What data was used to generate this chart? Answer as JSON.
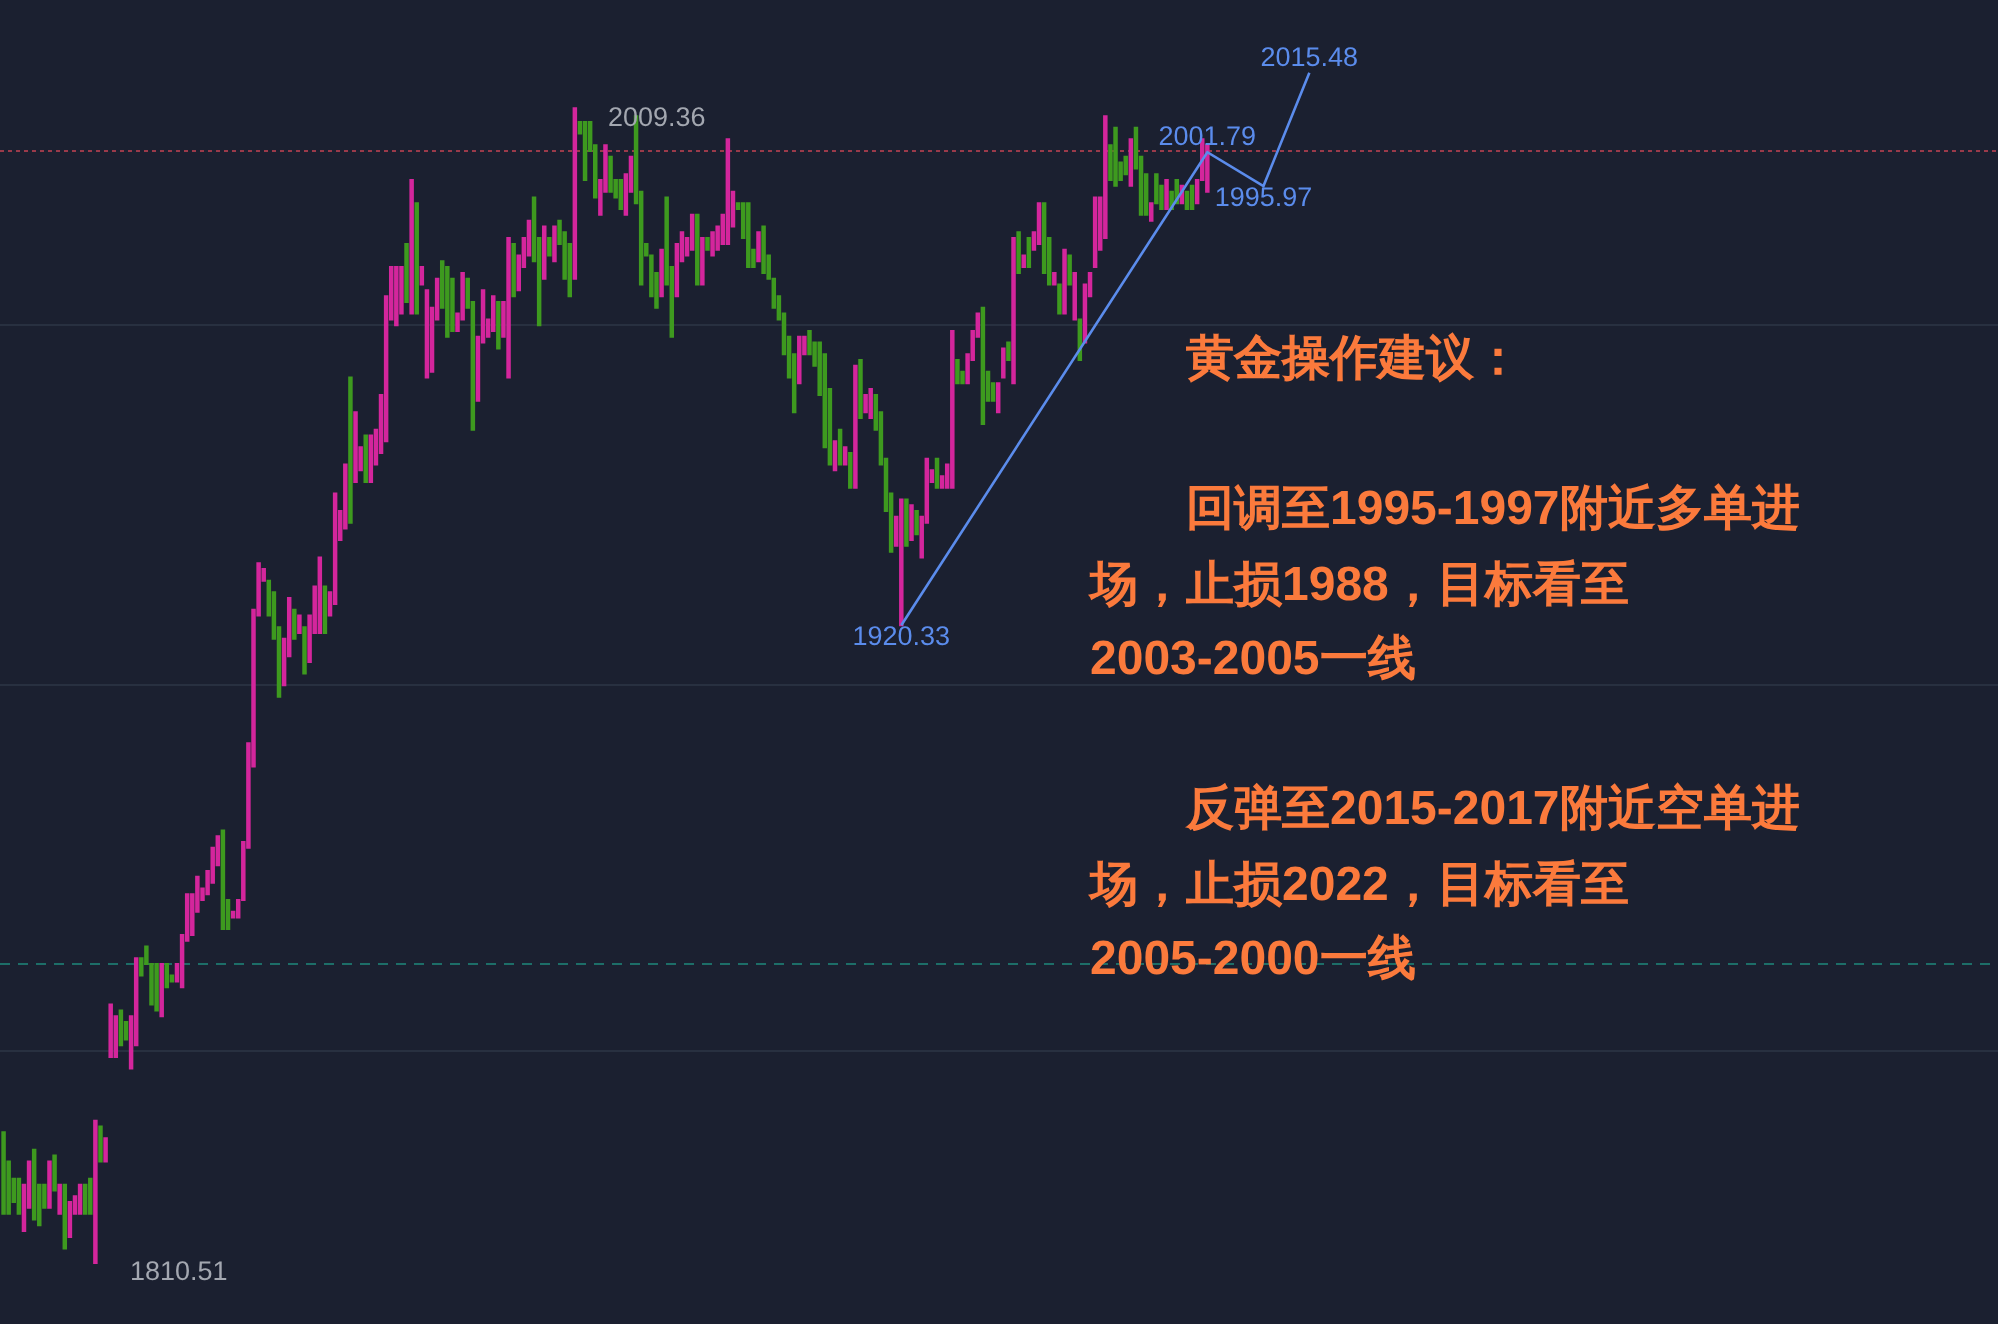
{
  "chart_data": {
    "type": "candlestick",
    "categories": [
      null,
      null,
      null,
      null,
      null,
      null,
      null,
      null,
      null,
      null,
      null,
      null,
      null,
      null,
      null,
      null,
      null,
      null,
      null,
      null,
      null,
      null,
      null,
      null,
      null,
      null,
      null,
      null,
      null,
      null,
      null,
      null,
      null,
      null,
      null,
      null,
      null,
      null,
      null,
      null,
      null,
      null,
      null,
      null,
      null,
      null,
      null,
      null,
      null,
      null,
      null,
      null,
      null,
      null,
      null,
      null,
      null,
      null,
      null,
      null,
      null,
      null,
      null,
      null,
      null,
      null,
      null,
      null,
      null,
      null,
      null,
      null,
      null,
      null,
      null,
      null,
      null,
      null,
      null,
      null,
      null,
      null,
      null,
      null,
      null,
      null,
      null,
      null,
      null,
      null,
      null,
      null,
      null,
      null,
      null,
      null,
      null,
      null,
      null,
      null,
      null,
      null,
      null,
      null,
      null,
      null,
      null,
      null,
      null,
      null,
      null,
      null,
      null,
      null,
      null,
      null,
      null,
      null,
      null,
      null,
      null,
      null,
      null,
      null,
      null,
      null,
      null,
      null,
      null,
      null,
      null,
      null,
      null,
      null,
      null,
      null,
      null,
      null,
      null,
      null,
      null,
      null,
      null,
      null,
      null,
      null,
      null,
      null,
      null,
      null,
      null,
      null,
      null,
      null,
      null,
      null,
      null,
      null,
      null,
      null,
      null,
      null,
      null,
      null,
      null,
      null,
      null,
      null,
      null,
      null,
      null,
      null,
      null,
      null,
      null,
      null,
      null,
      null,
      null,
      null,
      null,
      null,
      null,
      null,
      null,
      null,
      null,
      null,
      null,
      null,
      null,
      null,
      null,
      null,
      null,
      null,
      null,
      null,
      null,
      null,
      null,
      null,
      null,
      null,
      null,
      null,
      null,
      null,
      null,
      null,
      null,
      null,
      null,
      null,
      null,
      null,
      null,
      null,
      null,
      null,
      null,
      null,
      null,
      null,
      null,
      null,
      null,
      null,
      null,
      null,
      null,
      null,
      null,
      null,
      null,
      null,
      null,
      null,
      null,
      null,
      null,
      null,
      null,
      null,
      null,
      null,
      null,
      null,
      null,
      null,
      null,
      null,
      null,
      null,
      null,
      null,
      null
    ],
    "ohlc": [
      [
        1833,
        1833,
        1819,
        1819
      ],
      [
        1828,
        1828,
        1819,
        1819
      ],
      [
        1825,
        1825,
        1821,
        1821
      ],
      [
        1825,
        1825,
        1819,
        1819
      ],
      [
        1816,
        1824,
        1816,
        1824
      ],
      [
        1820,
        1828,
        1820,
        1828
      ],
      [
        1830,
        1830,
        1818,
        1818
      ],
      [
        1824,
        1824,
        1817,
        1817
      ],
      [
        1824,
        1824,
        1820,
        1820
      ],
      [
        1820,
        1828,
        1820,
        1828
      ],
      [
        1829,
        1829,
        1823,
        1823
      ],
      [
        1819,
        1824,
        1819,
        1824
      ],
      [
        1824,
        1824,
        1813,
        1813
      ],
      [
        1815,
        1821,
        1815,
        1821
      ],
      [
        1819,
        1822,
        1819,
        1822
      ],
      [
        1819,
        1824,
        1819,
        1824
      ],
      [
        1824,
        1824,
        1819,
        1819
      ],
      [
        1825,
        1825,
        1819,
        1819
      ],
      [
        1810.51,
        1835,
        1810.51,
        1835
      ],
      [
        1834,
        1834,
        1828,
        1828
      ],
      [
        1828,
        1832,
        1828,
        1832
      ],
      [
        1846,
        1855,
        1846,
        1855
      ],
      [
        1846,
        1853,
        1846,
        1853
      ],
      [
        1854,
        1854,
        1848,
        1848
      ],
      [
        1852,
        1852,
        1849,
        1849
      ],
      [
        1844,
        1853,
        1844,
        1853
      ],
      [
        1848,
        1863,
        1848,
        1863
      ],
      [
        1863,
        1863,
        1860,
        1860
      ],
      [
        1865,
        1865,
        1862,
        1862
      ],
      [
        1862,
        1862,
        1855,
        1855
      ],
      [
        1862,
        1862,
        1854,
        1854
      ],
      [
        1853,
        1862,
        1853,
        1862
      ],
      [
        1862,
        1862,
        1858,
        1858
      ],
      [
        1860,
        1860,
        1859,
        1859
      ],
      [
        1859,
        1862,
        1859,
        1862
      ],
      [
        1858,
        1867,
        1858,
        1867
      ],
      [
        1866,
        1874,
        1866,
        1874
      ],
      [
        1867,
        1874,
        1867,
        1874
      ],
      [
        1871,
        1877,
        1871,
        1877
      ],
      [
        1873,
        1875,
        1873,
        1875
      ],
      [
        1874,
        1878,
        1874,
        1878
      ],
      [
        1876,
        1882,
        1876,
        1882
      ],
      [
        1879,
        1884,
        1879,
        1884
      ],
      [
        1885,
        1885,
        1868,
        1868
      ],
      [
        1873,
        1873,
        1868,
        1868
      ],
      [
        1870,
        1871,
        1870,
        1871
      ],
      [
        1870,
        1873,
        1870,
        1873
      ],
      [
        1873,
        1883,
        1873,
        1883
      ],
      [
        1882,
        1900,
        1882,
        1900
      ],
      [
        1896,
        1923,
        1896,
        1923
      ],
      [
        1922,
        1931,
        1922,
        1931
      ],
      [
        1928,
        1930,
        1928,
        1930
      ],
      [
        1928,
        1928,
        1922,
        1922
      ],
      [
        1926,
        1926,
        1918,
        1918
      ],
      [
        1920,
        1920,
        1908,
        1908
      ],
      [
        1910,
        1918,
        1910,
        1918
      ],
      [
        1915,
        1925,
        1915,
        1925
      ],
      [
        1923,
        1923,
        1918,
        1918
      ],
      [
        1919,
        1922,
        1919,
        1922
      ],
      [
        1920,
        1920,
        1912,
        1912
      ],
      [
        1914,
        1922,
        1914,
        1922
      ],
      [
        1919,
        1927,
        1919,
        1927
      ],
      [
        1919,
        1932,
        1919,
        1932
      ],
      [
        1927,
        1927,
        1919,
        1919
      ],
      [
        1922,
        1926,
        1922,
        1926
      ],
      [
        1924,
        1943,
        1924,
        1943
      ],
      [
        1935,
        1940,
        1935,
        1940
      ],
      [
        1937,
        1948,
        1937,
        1948
      ],
      [
        1963,
        1963,
        1938,
        1938
      ],
      [
        1945,
        1957,
        1945,
        1957
      ],
      [
        1947,
        1951,
        1947,
        1951
      ],
      [
        1953,
        1953,
        1945,
        1945
      ],
      [
        1945,
        1953,
        1945,
        1953
      ],
      [
        1948,
        1954,
        1948,
        1954
      ],
      [
        1950,
        1960,
        1950,
        1960
      ],
      [
        1952,
        1977,
        1952,
        1977
      ],
      [
        1973,
        1982,
        1973,
        1982
      ],
      [
        1972,
        1982,
        1972,
        1982
      ],
      [
        1974,
        1982,
        1974,
        1982
      ],
      [
        1986,
        1986,
        1976,
        1976
      ],
      [
        1974,
        1997,
        1974,
        1997
      ],
      [
        1993,
        1993,
        1974,
        1974
      ],
      [
        1979,
        1982,
        1979,
        1982
      ],
      [
        1963,
        1978,
        1963,
        1978
      ],
      [
        1964,
        1975,
        1964,
        1975
      ],
      [
        1973,
        1980,
        1973,
        1980
      ],
      [
        1983,
        1983,
        1975,
        1975
      ],
      [
        1982,
        1982,
        1970,
        1970
      ],
      [
        1980,
        1980,
        1971,
        1971
      ],
      [
        1971,
        1974,
        1971,
        1974
      ],
      [
        1973,
        1981,
        1973,
        1981
      ],
      [
        1980,
        1980,
        1975,
        1975
      ],
      [
        1976,
        1976,
        1954,
        1954
      ],
      [
        1959,
        1970,
        1959,
        1970
      ],
      [
        1969,
        1978,
        1969,
        1978
      ],
      [
        1970,
        1973,
        1970,
        1973
      ],
      [
        1971,
        1977,
        1971,
        1977
      ],
      [
        1976,
        1976,
        1968,
        1968
      ],
      [
        1970,
        1976,
        1970,
        1976
      ],
      [
        1963,
        1987,
        1963,
        1987
      ],
      [
        1986,
        1986,
        1977,
        1977
      ],
      [
        1978,
        1984,
        1978,
        1984
      ],
      [
        1982,
        1987,
        1982,
        1987
      ],
      [
        1984,
        1990,
        1984,
        1990
      ],
      [
        1994,
        1994,
        1983,
        1983
      ],
      [
        1987,
        1987,
        1972,
        1972
      ],
      [
        1980,
        1989,
        1980,
        1989
      ],
      [
        1987,
        1987,
        1984,
        1984
      ],
      [
        1983,
        1989,
        1983,
        1989
      ],
      [
        1990,
        1990,
        1986,
        1986
      ],
      [
        1988,
        1988,
        1980,
        1980
      ],
      [
        1986,
        1986,
        1977,
        1977
      ],
      [
        1980,
        2009.36,
        1980,
        2009.36
      ],
      [
        2007,
        2007,
        2005,
        2005
      ],
      [
        2007,
        2007,
        1997,
        1997
      ],
      [
        2007,
        2007,
        2002,
        2002
      ],
      [
        2003,
        2003,
        1994,
        1994
      ],
      [
        1991,
        1997,
        1991,
        1997
      ],
      [
        1995,
        2003,
        1995,
        2003
      ],
      [
        2001,
        2001,
        1995,
        1995
      ],
      [
        1997,
        1997,
        1994,
        1994
      ],
      [
        1997,
        1997,
        1992,
        1992
      ],
      [
        1991,
        1998,
        1991,
        1998
      ],
      [
        1995,
        2001,
        1995,
        2001
      ],
      [
        2008,
        2008,
        1993,
        1993
      ],
      [
        1995,
        1995,
        1979,
        1979
      ],
      [
        1986,
        1986,
        1984,
        1984
      ],
      [
        1984,
        1984,
        1977,
        1977
      ],
      [
        1981,
        1981,
        1975,
        1975
      ],
      [
        1977,
        1985,
        1977,
        1985
      ],
      [
        1994,
        1994,
        1979,
        1979
      ],
      [
        1982,
        1982,
        1970,
        1970
      ],
      [
        1977,
        1986,
        1977,
        1986
      ],
      [
        1983,
        1988,
        1983,
        1988
      ],
      [
        1984,
        1987,
        1984,
        1987
      ],
      [
        1985,
        1991,
        1985,
        1991
      ],
      [
        1991,
        1991,
        1979,
        1979
      ],
      [
        1979,
        1987,
        1979,
        1987
      ],
      [
        1987,
        1987,
        1985,
        1985
      ],
      [
        1984,
        1988,
        1984,
        1988
      ],
      [
        1985,
        1989,
        1985,
        1989
      ],
      [
        1986,
        1991,
        1986,
        1991
      ],
      [
        1986,
        2004,
        1986,
        2004
      ],
      [
        1989,
        1995,
        1989,
        1995
      ],
      [
        1993,
        1993,
        1992,
        1992
      ],
      [
        1993,
        1993,
        1987,
        1987
      ],
      [
        1993,
        1993,
        1982,
        1982
      ],
      [
        1985,
        1985,
        1982,
        1982
      ],
      [
        1983,
        1988,
        1983,
        1988
      ],
      [
        1989,
        1989,
        1981,
        1981
      ],
      [
        1984,
        1984,
        1980,
        1980
      ],
      [
        1980,
        1980,
        1975,
        1975
      ],
      [
        1977,
        1977,
        1973,
        1973
      ],
      [
        1974,
        1974,
        1967,
        1967
      ],
      [
        1970,
        1970,
        1963,
        1963
      ],
      [
        1967,
        1967,
        1957,
        1957
      ],
      [
        1962,
        1970,
        1962,
        1970
      ],
      [
        1967,
        1970,
        1967,
        1970
      ],
      [
        1971,
        1971,
        1967,
        1967
      ],
      [
        1969,
        1969,
        1965,
        1965
      ],
      [
        1969,
        1969,
        1960,
        1960
      ],
      [
        1967,
        1967,
        1951,
        1951
      ],
      [
        1961,
        1961,
        1948,
        1948
      ],
      [
        1947,
        1952,
        1947,
        1952
      ],
      [
        1954,
        1954,
        1948,
        1948
      ],
      [
        1948,
        1951,
        1948,
        1951
      ],
      [
        1950,
        1950,
        1944,
        1944
      ],
      [
        1944,
        1965,
        1944,
        1965
      ],
      [
        1966,
        1966,
        1956,
        1956
      ],
      [
        1957,
        1960,
        1957,
        1960
      ],
      [
        1956,
        1961,
        1956,
        1961
      ],
      [
        1960,
        1960,
        1954,
        1954
      ],
      [
        1957,
        1957,
        1948,
        1948
      ],
      [
        1949,
        1949,
        1940,
        1940
      ],
      [
        1943,
        1943,
        1933,
        1933
      ],
      [
        1934,
        1939,
        1934,
        1939
      ],
      [
        1920.33,
        1942,
        1920.33,
        1942
      ],
      [
        1942,
        1942,
        1934,
        1934
      ],
      [
        1935,
        1941,
        1935,
        1941
      ],
      [
        1940,
        1940,
        1936,
        1936
      ],
      [
        1932,
        1939,
        1932,
        1939
      ],
      [
        1938,
        1949,
        1938,
        1949
      ],
      [
        1945,
        1947,
        1945,
        1947
      ],
      [
        1949,
        1949,
        1944,
        1944
      ],
      [
        1944,
        1946,
        1944,
        1946
      ],
      [
        1944,
        1948,
        1944,
        1948
      ],
      [
        1944,
        1971,
        1944,
        1971
      ],
      [
        1966,
        1966,
        1962,
        1962
      ],
      [
        1964,
        1964,
        1962,
        1962
      ],
      [
        1962,
        1967,
        1962,
        1967
      ],
      [
        1966,
        1971,
        1966,
        1971
      ],
      [
        1970,
        1974,
        1970,
        1974
      ],
      [
        1975,
        1975,
        1955,
        1955
      ],
      [
        1964,
        1964,
        1959,
        1959
      ],
      [
        1962,
        1962,
        1959,
        1959
      ],
      [
        1957,
        1962,
        1957,
        1962
      ],
      [
        1963,
        1968,
        1963,
        1968
      ],
      [
        1969,
        1969,
        1966,
        1966
      ],
      [
        1962,
        1987,
        1962,
        1987
      ],
      [
        1988,
        1988,
        1981,
        1981
      ],
      [
        1982,
        1984,
        1982,
        1984
      ],
      [
        1987,
        1987,
        1982,
        1982
      ],
      [
        1985,
        1988,
        1985,
        1988
      ],
      [
        1986,
        1993,
        1986,
        1993
      ],
      [
        1993,
        1993,
        1981,
        1981
      ],
      [
        1987,
        1987,
        1979,
        1979
      ],
      [
        1979,
        1981,
        1979,
        1981
      ],
      [
        1979,
        1979,
        1974,
        1974
      ],
      [
        1974,
        1985,
        1974,
        1985
      ],
      [
        1984,
        1984,
        1979,
        1979
      ],
      [
        1973,
        1981,
        1973,
        1981
      ],
      [
        1973,
        1973,
        1966,
        1966
      ],
      [
        1969,
        1979,
        1969,
        1979
      ],
      [
        1977,
        1981,
        1977,
        1981
      ],
      [
        1982,
        1994,
        1982,
        1994
      ],
      [
        1985,
        1994,
        1985,
        1994
      ],
      [
        1987,
        2008,
        1987,
        2008
      ],
      [
        2003,
        2003,
        1997,
        1997
      ],
      [
        2006,
        2006,
        1996,
        1996
      ],
      [
        2000,
        2000,
        1997,
        1997
      ],
      [
        2001,
        2001,
        1998,
        1998
      ],
      [
        1996,
        2004,
        1996,
        2004
      ],
      [
        2006,
        2006,
        1999,
        1999
      ],
      [
        2001,
        2001,
        1991,
        1991
      ],
      [
        1998,
        1998,
        1991,
        1991
      ],
      [
        1993,
        1993,
        1990,
        1990
      ],
      [
        1993,
        1998,
        1993,
        1998
      ],
      [
        1996,
        1996,
        1992,
        1992
      ],
      [
        1997,
        1997,
        1992,
        1992
      ],
      [
        1992,
        1995,
        1992,
        1995
      ],
      [
        1997,
        1997,
        1993,
        1993
      ],
      [
        1993,
        1996,
        1993,
        1996
      ],
      [
        1995,
        1995,
        1992,
        1992
      ],
      [
        1996,
        1996,
        1992,
        1992
      ],
      [
        1993,
        1997,
        1993,
        1997
      ],
      [
        1997,
        2004,
        1997,
        2004
      ],
      [
        1995,
        2003,
        1995,
        2003
      ],
      null,
      null,
      null,
      null,
      null,
      null,
      null,
      null,
      null,
      null,
      null,
      null,
      null,
      null,
      null,
      null,
      null,
      null,
      null,
      null
    ],
    "colors": [
      "#3e9a1f",
      "#3e9a1f",
      "#3e9a1f",
      "#3e9a1f",
      "#d4269c",
      "#d4269c",
      "#3e9a1f",
      "#3e9a1f",
      "#3e9a1f",
      "#d4269c",
      "#3e9a1f",
      "#d4269c",
      "#3e9a1f",
      "#d4269c",
      "#d4269c",
      "#d4269c",
      "#3e9a1f",
      "#3e9a1f",
      "#d4269c",
      "#3e9a1f",
      "#d4269c",
      "#d4269c",
      "#d4269c",
      "#3e9a1f",
      "#3e9a1f",
      "#d4269c",
      "#d4269c",
      "#3e9a1f",
      "#3e9a1f",
      "#3e9a1f",
      "#3e9a1f",
      "#d4269c",
      "#3e9a1f",
      "#3e9a1f",
      "#d4269c",
      "#d4269c",
      "#d4269c",
      "#d4269c",
      "#d4269c",
      "#d4269c",
      "#d4269c",
      "#d4269c",
      "#d4269c",
      "#3e9a1f",
      "#3e9a1f",
      "#d4269c",
      "#d4269c",
      "#d4269c",
      "#d4269c",
      "#d4269c",
      "#d4269c",
      "#d4269c",
      "#3e9a1f",
      "#3e9a1f",
      "#3e9a1f",
      "#d4269c",
      "#d4269c",
      "#3e9a1f",
      "#d4269c",
      "#3e9a1f",
      "#d4269c",
      "#d4269c",
      "#d4269c",
      "#3e9a1f",
      "#d4269c",
      "#d4269c",
      "#d4269c",
      "#d4269c",
      "#3e9a1f",
      "#d4269c",
      "#d4269c",
      "#3e9a1f",
      "#d4269c",
      "#d4269c",
      "#d4269c",
      "#d4269c",
      "#d4269c",
      "#d4269c",
      "#d4269c",
      "#3e9a1f",
      "#d4269c",
      "#3e9a1f",
      "#d4269c",
      "#d4269c",
      "#d4269c",
      "#d4269c",
      "#3e9a1f",
      "#3e9a1f",
      "#3e9a1f",
      "#d4269c",
      "#d4269c",
      "#3e9a1f",
      "#3e9a1f",
      "#d4269c",
      "#d4269c",
      "#d4269c",
      "#d4269c",
      "#3e9a1f",
      "#d4269c",
      "#d4269c",
      "#3e9a1f",
      "#d4269c",
      "#d4269c",
      "#d4269c",
      "#3e9a1f",
      "#3e9a1f",
      "#d4269c",
      "#3e9a1f",
      "#d4269c",
      "#3e9a1f",
      "#3e9a1f",
      "#3e9a1f",
      "#d4269c",
      "#3e9a1f",
      "#3e9a1f",
      "#3e9a1f",
      "#3e9a1f",
      "#d4269c",
      "#d4269c",
      "#3e9a1f",
      "#3e9a1f",
      "#3e9a1f",
      "#d4269c",
      "#d4269c",
      "#3e9a1f",
      "#3e9a1f",
      "#3e9a1f",
      "#3e9a1f",
      "#3e9a1f",
      "#d4269c",
      "#3e9a1f",
      "#3e9a1f",
      "#d4269c",
      "#d4269c",
      "#d4269c",
      "#d4269c",
      "#3e9a1f",
      "#d4269c",
      "#3e9a1f",
      "#d4269c",
      "#d4269c",
      "#d4269c",
      "#d4269c",
      "#d4269c",
      "#3e9a1f",
      "#3e9a1f",
      "#3e9a1f",
      "#3e9a1f",
      "#d4269c",
      "#3e9a1f",
      "#3e9a1f",
      "#3e9a1f",
      "#3e9a1f",
      "#3e9a1f",
      "#3e9a1f",
      "#3e9a1f",
      "#d4269c",
      "#d4269c",
      "#3e9a1f",
      "#3e9a1f",
      "#3e9a1f",
      "#3e9a1f",
      "#3e9a1f",
      "#d4269c",
      "#3e9a1f",
      "#d4269c",
      "#3e9a1f",
      "#d4269c",
      "#3e9a1f",
      "#d4269c",
      "#d4269c",
      "#3e9a1f",
      "#3e9a1f",
      "#3e9a1f",
      "#3e9a1f",
      "#d4269c",
      "#d4269c",
      "#3e9a1f",
      "#d4269c",
      "#3e9a1f",
      "#d4269c",
      "#d4269c",
      "#d4269c",
      "#3e9a1f",
      "#d4269c",
      "#d4269c",
      "#d4269c",
      "#3e9a1f",
      "#3e9a1f",
      "#d4269c",
      "#d4269c",
      "#d4269c",
      "#3e9a1f",
      "#3e9a1f",
      "#3e9a1f",
      "#d4269c",
      "#d4269c",
      "#3e9a1f",
      "#d4269c",
      "#3e9a1f",
      "#d4269c",
      "#3e9a1f",
      "#d4269c",
      "#d4269c",
      "#3e9a1f",
      "#3e9a1f",
      "#d4269c",
      "#3e9a1f",
      "#d4269c",
      "#3e9a1f",
      "#d4269c",
      "#3e9a1f",
      "#d4269c",
      "#d4269c",
      "#d4269c",
      "#d4269c",
      "#d4269c",
      "#3e9a1f",
      "#3e9a1f",
      "#3e9a1f",
      "#3e9a1f",
      "#d4269c",
      "#3e9a1f",
      "#3e9a1f",
      "#3e9a1f",
      "#d4269c",
      "#3e9a1f",
      "#3e9a1f",
      "#d4269c",
      "#3e9a1f",
      "#3e9a1f",
      "#d4269c",
      "#3e9a1f",
      "#3e9a1f",
      "#d4269c",
      "#d4269c",
      "#d4269c",
      null,
      null,
      null,
      null,
      null,
      null,
      null,
      null,
      null,
      null,
      null,
      null,
      null,
      null,
      null,
      null,
      null,
      null,
      null,
      null
    ],
    "value_labels": [
      null,
      null,
      null,
      null,
      null,
      null,
      null,
      null,
      null,
      null,
      null,
      null,
      null,
      null,
      null,
      null,
      null,
      null,
      "1810.51",
      null,
      null,
      null,
      null,
      null,
      null,
      null,
      null,
      null,
      null,
      null,
      null,
      null,
      null,
      null,
      null,
      null,
      null,
      null,
      null,
      null,
      null,
      null,
      null,
      null,
      null,
      null,
      null,
      null,
      null,
      null,
      null,
      null,
      null,
      null,
      null,
      null,
      null,
      null,
      null,
      null,
      null,
      null,
      null,
      null,
      null,
      null,
      null,
      null,
      null,
      null,
      null,
      null,
      null,
      null,
      null,
      null,
      null,
      null,
      null,
      null,
      null,
      null,
      null,
      null,
      null,
      null,
      null,
      null,
      null,
      null,
      null,
      null,
      null,
      null,
      null,
      null,
      null,
      null,
      null,
      null,
      null,
      null,
      null,
      null,
      null,
      null,
      null,
      null,
      null,
      null,
      null,
      null,
      "2009.36",
      null,
      null,
      null,
      null,
      null,
      null,
      null,
      null,
      null,
      null,
      null,
      null,
      null,
      null,
      null,
      null,
      null,
      null,
      null,
      null,
      null,
      null,
      null,
      null,
      null,
      null,
      null,
      null,
      null,
      null,
      null,
      null,
      null,
      null,
      null,
      null,
      null,
      null,
      null,
      null,
      null,
      null,
      null,
      null,
      null,
      null,
      null,
      null,
      null,
      null,
      null,
      null,
      null,
      null,
      null,
      null,
      null,
      null,
      null,
      null,
      null,
      null,
      null,
      null,
      null,
      null,
      null,
      null,
      null,
      null,
      null,
      null,
      null,
      null,
      null,
      null,
      null,
      null,
      null,
      null,
      null,
      null,
      null,
      null,
      null,
      null,
      null,
      null,
      null,
      null,
      null,
      null,
      null,
      null,
      null,
      null,
      null,
      null,
      null,
      null,
      null,
      null,
      null,
      null,
      null,
      null,
      null,
      null,
      null,
      null,
      null,
      null,
      null,
      null,
      null,
      null,
      null,
      null,
      null,
      null,
      null,
      null,
      null,
      null,
      null,
      null,
      null,
      null,
      null,
      null,
      null,
      null,
      null,
      null,
      null,
      null,
      null,
      null,
      null,
      null,
      null,
      null,
      null,
      null
    ],
    "series": [
      {
        "type": "line",
        "color": "#5b8cec",
        "values": [
          null,
          null,
          null,
          null,
          null,
          null,
          null,
          null,
          null,
          null,
          null,
          null,
          null,
          null,
          null,
          null,
          null,
          null,
          null,
          null,
          null,
          null,
          null,
          null,
          null,
          null,
          null,
          null,
          null,
          null,
          null,
          null,
          null,
          null,
          null,
          null,
          null,
          null,
          null,
          null,
          null,
          null,
          null,
          null,
          null,
          null,
          null,
          null,
          null,
          null,
          null,
          null,
          null,
          null,
          null,
          null,
          null,
          null,
          null,
          null,
          null,
          null,
          null,
          null,
          null,
          null,
          null,
          null,
          null,
          null,
          null,
          null,
          null,
          null,
          null,
          null,
          null,
          null,
          null,
          null,
          null,
          null,
          null,
          null,
          null,
          null,
          null,
          null,
          null,
          null,
          null,
          null,
          null,
          null,
          null,
          null,
          null,
          null,
          null,
          null,
          null,
          null,
          null,
          null,
          null,
          null,
          null,
          null,
          null,
          null,
          null,
          null,
          null,
          null,
          null,
          null,
          null,
          null,
          null,
          null,
          null,
          null,
          null,
          null,
          null,
          null,
          null,
          null,
          null,
          null,
          null,
          null,
          null,
          null,
          null,
          null,
          null,
          null,
          null,
          null,
          null,
          null,
          null,
          null,
          null,
          null,
          null,
          null,
          null,
          null,
          null,
          null,
          null,
          null,
          null,
          null,
          null,
          null,
          null,
          null,
          null,
          null,
          null,
          null,
          null,
          null,
          null,
          null,
          null,
          null,
          null,
          null,
          null,
          null,
          null,
          null,
          1920.33,
          null,
          null,
          null,
          null,
          null,
          null,
          null,
          null,
          null,
          null,
          null,
          null,
          null,
          null,
          null,
          null,
          null,
          null,
          null,
          null,
          null,
          null,
          null,
          null,
          null,
          null,
          null,
          null,
          null,
          null,
          null,
          null,
          null,
          null,
          null,
          null,
          null,
          null,
          null,
          null,
          null,
          null,
          null,
          null,
          null,
          null,
          null,
          null,
          null,
          null,
          null,
          null,
          null,
          null,
          null,
          null,
          null,
          null,
          null,
          2001.79,
          null,
          null,
          null,
          null,
          null,
          null,
          null,
          null,
          null,
          null,
          1995.97,
          null,
          null,
          null,
          null,
          null,
          null,
          null,
          null,
          2015.48
        ],
        "value_labels": [
          null,
          null,
          null,
          null,
          null,
          null,
          null,
          null,
          null,
          null,
          null,
          null,
          null,
          null,
          null,
          null,
          null,
          null,
          null,
          null,
          null,
          null,
          null,
          null,
          null,
          null,
          null,
          null,
          null,
          null,
          null,
          null,
          null,
          null,
          null,
          null,
          null,
          null,
          null,
          null,
          null,
          null,
          null,
          null,
          null,
          null,
          null,
          null,
          null,
          null,
          null,
          null,
          null,
          null,
          null,
          null,
          null,
          null,
          null,
          null,
          null,
          null,
          null,
          null,
          null,
          null,
          null,
          null,
          null,
          null,
          null,
          null,
          null,
          null,
          null,
          null,
          null,
          null,
          null,
          null,
          null,
          null,
          null,
          null,
          null,
          null,
          null,
          null,
          null,
          null,
          null,
          null,
          null,
          null,
          null,
          null,
          null,
          null,
          null,
          null,
          null,
          null,
          null,
          null,
          null,
          null,
          null,
          null,
          null,
          null,
          null,
          null,
          null,
          null,
          null,
          null,
          null,
          null,
          null,
          null,
          null,
          null,
          null,
          null,
          null,
          null,
          null,
          null,
          null,
          null,
          null,
          null,
          null,
          null,
          null,
          null,
          null,
          null,
          null,
          null,
          null,
          null,
          null,
          null,
          null,
          null,
          null,
          null,
          null,
          null,
          null,
          null,
          null,
          null,
          null,
          null,
          null,
          null,
          null,
          null,
          null,
          null,
          null,
          null,
          null,
          null,
          null,
          null,
          null,
          null,
          null,
          null,
          null,
          null,
          null,
          null,
          "1920.33",
          null,
          null,
          null,
          null,
          null,
          null,
          null,
          null,
          null,
          null,
          null,
          null,
          null,
          null,
          null,
          null,
          null,
          null,
          null,
          null,
          null,
          null,
          null,
          null,
          null,
          null,
          null,
          null,
          null,
          null,
          null,
          null,
          null,
          null,
          null,
          null,
          null,
          null,
          null,
          null,
          null,
          null,
          null,
          null,
          null,
          null,
          null,
          null,
          null,
          null,
          null,
          null,
          null,
          null,
          null,
          null,
          null,
          null,
          null,
          "2001.79",
          null,
          null,
          null,
          null,
          null,
          null,
          null,
          null,
          null,
          null,
          "1995.97",
          null,
          null,
          null,
          null,
          null,
          null,
          null,
          null,
          "2015.48"
        ]
      }
    ],
    "ylim": [
      1800,
      2028
    ],
    "yticks": [
      {
        "value": 1847,
        "label": null
      },
      {
        "value": 1910,
        "label": null
      },
      {
        "value": 1972,
        "label": null
      }
    ],
    "grid": "y",
    "tick_labels": false,
    "ref_lines": [
      {
        "axis": "y",
        "value": 2002,
        "color": "#9a3a4a",
        "line_style": "dotted"
      },
      {
        "axis": "y",
        "value": 1862,
        "color": "#1d6e68",
        "line_style": "dashed"
      }
    ],
    "annotations": [
      "黄金操作建议：",
      "回调至1995-1997附近多单进场，止损1988，目标看至2003-2005一线",
      "反弹至2015-2017附近空单进场，止损2022，目标看至2005-2000一线"
    ]
  }
}
